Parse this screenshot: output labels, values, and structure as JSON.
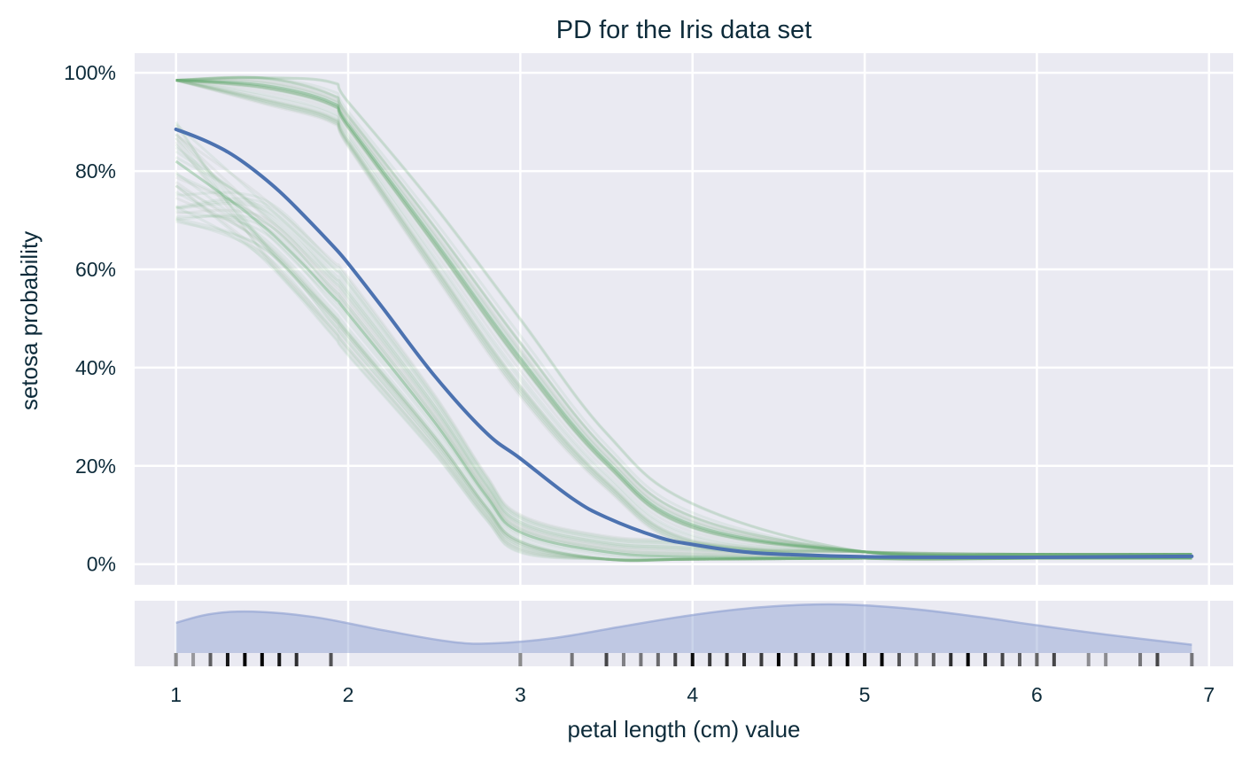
{
  "chart_data": {
    "type": "line",
    "title": "PD for the Iris data set",
    "xlabel": "petal length (cm) value",
    "ylabel": "setosa probability",
    "xlim": [
      0.76,
      7.14
    ],
    "ylim": [
      -0.042,
      1.04
    ],
    "x_ticks": [
      1,
      2,
      3,
      4,
      5,
      6,
      7
    ],
    "x_tick_labels": [
      "1",
      "2",
      "3",
      "4",
      "5",
      "6",
      "7"
    ],
    "y_ticks": [
      0,
      0.2,
      0.4,
      0.6,
      0.8,
      1.0
    ],
    "y_tick_labels": [
      "0%",
      "20%",
      "40%",
      "60%",
      "80%",
      "100%"
    ],
    "grid": true,
    "colors": {
      "background": "#eaeaf2",
      "grid": "#ffffff",
      "pd_line": "#4c72b0",
      "ice_lines": "#55a868",
      "ice_faint": "#b0c4b4",
      "density_fill": "#8c9fd1",
      "rug": "#000000",
      "text": "#0d2b3a"
    },
    "series": [
      {
        "role": "partial dependence (mean)",
        "x": [
          1.0,
          1.1,
          1.2,
          1.3,
          1.4,
          1.5,
          1.6,
          1.7,
          1.9,
          2.0,
          2.2,
          2.5,
          2.8,
          3.0,
          3.3,
          3.5,
          3.8,
          4.0,
          4.3,
          4.6,
          5.0,
          5.5,
          6.0,
          6.5,
          6.9
        ],
        "values": [
          0.885,
          0.872,
          0.857,
          0.839,
          0.816,
          0.789,
          0.759,
          0.725,
          0.652,
          0.612,
          0.522,
          0.384,
          0.268,
          0.215,
          0.134,
          0.095,
          0.055,
          0.04,
          0.025,
          0.019,
          0.015,
          0.014,
          0.014,
          0.015,
          0.016
        ]
      }
    ],
    "ice_groups": [
      {
        "role": "individual conditional expectation (group A)",
        "x": [
          1.0,
          1.5,
          1.9,
          2.0,
          2.5,
          3.0,
          3.5,
          4.0,
          5.0,
          6.0,
          6.9
        ],
        "values": [
          0.985,
          0.975,
          0.94,
          0.895,
          0.66,
          0.42,
          0.21,
          0.08,
          0.025,
          0.02,
          0.02
        ]
      },
      {
        "role": "individual conditional expectation (group B)",
        "x": [
          1.0,
          1.5,
          1.9,
          2.0,
          2.5,
          2.8,
          3.0,
          3.5,
          4.0,
          5.0,
          6.0,
          6.9
        ],
        "values": [
          0.82,
          0.69,
          0.55,
          0.51,
          0.29,
          0.14,
          0.065,
          0.025,
          0.015,
          0.012,
          0.012,
          0.012
        ]
      }
    ],
    "density": {
      "role": "feature distribution",
      "x": [
        1.0,
        1.2,
        1.45,
        1.8,
        2.2,
        2.6,
        2.85,
        3.2,
        3.6,
        4.0,
        4.4,
        4.8,
        5.2,
        5.6,
        6.0,
        6.4,
        6.9
      ],
      "values": [
        0.62,
        0.8,
        0.85,
        0.74,
        0.47,
        0.23,
        0.2,
        0.31,
        0.55,
        0.78,
        0.94,
        1.0,
        0.93,
        0.77,
        0.57,
        0.38,
        0.17
      ]
    },
    "rug": {
      "x": [
        1.0,
        1.1,
        1.2,
        1.3,
        1.4,
        1.5,
        1.6,
        1.7,
        1.9,
        3.0,
        3.3,
        3.5,
        3.6,
        3.7,
        3.8,
        3.9,
        4.0,
        4.1,
        4.2,
        4.3,
        4.4,
        4.5,
        4.6,
        4.7,
        4.8,
        4.9,
        5.0,
        5.1,
        5.2,
        5.3,
        5.4,
        5.5,
        5.6,
        5.7,
        5.8,
        5.9,
        6.0,
        6.1,
        6.3,
        6.4,
        6.6,
        6.7,
        6.9
      ],
      "weights": [
        0.45,
        0.35,
        0.6,
        0.9,
        1.0,
        1.0,
        0.9,
        0.8,
        0.65,
        0.45,
        0.5,
        0.7,
        0.45,
        0.5,
        0.55,
        0.7,
        0.95,
        0.75,
        0.8,
        0.8,
        0.75,
        1.0,
        0.8,
        0.85,
        0.85,
        1.0,
        0.9,
        1.0,
        0.65,
        0.55,
        0.6,
        0.8,
        1.0,
        0.8,
        0.7,
        0.6,
        0.6,
        0.7,
        0.4,
        0.4,
        0.5,
        0.7,
        0.5
      ]
    }
  }
}
